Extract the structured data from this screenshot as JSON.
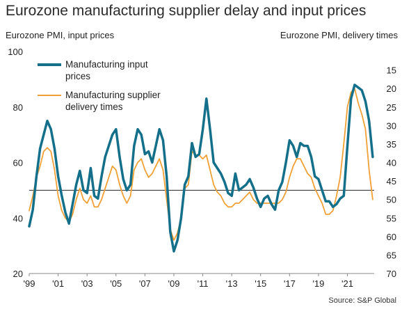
{
  "chart_data": {
    "type": "line",
    "title": "Eurozone manufacturing supplier delay and input prices",
    "left_axis_label": "Eurozone PMI, input prices",
    "right_axis_label": "Eurozone PMI, delivery times",
    "source": "Source: S&P Global",
    "x_ticks": [
      "'99",
      "'01",
      "'03",
      "'05",
      "'07",
      "'09",
      "'11",
      "'13",
      "'15",
      "'17",
      "'19",
      "'21"
    ],
    "left_ylim": [
      20,
      100
    ],
    "left_ticks": [
      "100",
      "80",
      "60",
      "40",
      "20"
    ],
    "right_ylim": [
      70,
      10
    ],
    "right_inverted": true,
    "right_ticks": [
      "15",
      "20",
      "25",
      "30",
      "35",
      "40",
      "45",
      "50",
      "55",
      "60",
      "65",
      "70"
    ],
    "reference_line_left_value": 50,
    "legend_position": "top-left",
    "series": [
      {
        "name": "Manufacturing input prices",
        "axis": "left",
        "color": "#136f8a",
        "x": [
          1999.0,
          1999.25,
          1999.5,
          1999.75,
          2000.0,
          2000.25,
          2000.5,
          2000.75,
          2001.0,
          2001.25,
          2001.5,
          2001.75,
          2002.0,
          2002.25,
          2002.5,
          2002.75,
          2003.0,
          2003.25,
          2003.5,
          2003.75,
          2004.0,
          2004.25,
          2004.5,
          2004.75,
          2005.0,
          2005.25,
          2005.5,
          2005.75,
          2006.0,
          2006.25,
          2006.5,
          2006.75,
          2007.0,
          2007.25,
          2007.5,
          2007.75,
          2008.0,
          2008.25,
          2008.5,
          2008.75,
          2009.0,
          2009.25,
          2009.5,
          2009.75,
          2010.0,
          2010.25,
          2010.5,
          2010.75,
          2011.0,
          2011.25,
          2011.5,
          2011.75,
          2012.0,
          2012.25,
          2012.5,
          2012.75,
          2013.0,
          2013.25,
          2013.5,
          2013.75,
          2014.0,
          2014.25,
          2014.5,
          2014.75,
          2015.0,
          2015.25,
          2015.5,
          2015.75,
          2016.0,
          2016.25,
          2016.5,
          2016.75,
          2017.0,
          2017.25,
          2017.5,
          2017.75,
          2018.0,
          2018.25,
          2018.5,
          2018.75,
          2019.0,
          2019.25,
          2019.5,
          2019.75,
          2020.0,
          2020.25,
          2020.5,
          2020.75,
          2021.0,
          2021.25,
          2021.5,
          2021.75,
          2022.0,
          2022.25,
          2022.5,
          2022.75
        ],
        "values": [
          37,
          43,
          55,
          65,
          70,
          75,
          72,
          65,
          55,
          48,
          42,
          38,
          45,
          52,
          57,
          50,
          49,
          58,
          48,
          47,
          55,
          62,
          66,
          70,
          72,
          62,
          54,
          50,
          52,
          66,
          72,
          70,
          63,
          64,
          60,
          66,
          72,
          68,
          55,
          35,
          28,
          32,
          40,
          52,
          55,
          67,
          62,
          63,
          72,
          83,
          72,
          60,
          58,
          56,
          53,
          49,
          48,
          56,
          50,
          51,
          52,
          54,
          51,
          47,
          44,
          47,
          48,
          45,
          43,
          50,
          53,
          60,
          68,
          66,
          62,
          67,
          66,
          66,
          62,
          55,
          54,
          50,
          46,
          46,
          44,
          45,
          47,
          48,
          66,
          83,
          88,
          87,
          86,
          82,
          75,
          62
        ]
      },
      {
        "name": "Manufacturing supplier delivery times",
        "axis": "right",
        "color": "#f0a035",
        "x": [
          1999.0,
          1999.25,
          1999.5,
          1999.75,
          2000.0,
          2000.25,
          2000.5,
          2000.75,
          2001.0,
          2001.25,
          2001.5,
          2001.75,
          2002.0,
          2002.25,
          2002.5,
          2002.75,
          2003.0,
          2003.25,
          2003.5,
          2003.75,
          2004.0,
          2004.25,
          2004.5,
          2004.75,
          2005.0,
          2005.25,
          2005.5,
          2005.75,
          2006.0,
          2006.25,
          2006.5,
          2006.75,
          2007.0,
          2007.25,
          2007.5,
          2007.75,
          2008.0,
          2008.25,
          2008.5,
          2008.75,
          2009.0,
          2009.25,
          2009.5,
          2009.75,
          2010.0,
          2010.25,
          2010.5,
          2010.75,
          2011.0,
          2011.25,
          2011.5,
          2011.75,
          2012.0,
          2012.25,
          2012.5,
          2012.75,
          2013.0,
          2013.25,
          2013.5,
          2013.75,
          2014.0,
          2014.25,
          2014.5,
          2014.75,
          2015.0,
          2015.25,
          2015.5,
          2015.75,
          2016.0,
          2016.25,
          2016.5,
          2016.75,
          2017.0,
          2017.25,
          2017.5,
          2017.75,
          2018.0,
          2018.25,
          2018.5,
          2018.75,
          2019.0,
          2019.25,
          2019.5,
          2019.75,
          2020.0,
          2020.25,
          2020.5,
          2020.75,
          2021.0,
          2021.25,
          2021.5,
          2021.75,
          2022.0,
          2022.25,
          2022.5,
          2022.75
        ],
        "values": [
          53,
          49,
          44,
          41,
          37,
          36,
          37,
          42,
          49,
          53,
          55,
          56,
          54,
          50,
          47,
          50,
          51,
          49,
          52,
          52,
          50,
          47,
          44,
          41,
          42,
          46,
          49,
          51,
          49,
          42,
          40,
          39,
          42,
          44,
          43,
          41,
          39,
          42,
          50,
          58,
          61,
          59,
          55,
          47,
          46,
          37,
          38,
          38,
          39,
          38,
          42,
          46,
          48,
          49,
          51,
          52,
          52,
          51,
          51,
          50,
          49,
          48,
          50,
          51,
          51,
          51,
          51,
          51,
          51,
          51,
          50,
          48,
          44,
          41,
          39,
          39,
          41,
          43,
          44,
          47,
          49,
          51,
          54,
          54,
          53,
          49,
          44,
          35,
          25,
          21,
          20,
          24,
          27,
          31,
          42,
          50
        ]
      }
    ]
  },
  "icons": {
    "legend_swatch": "line-swatch"
  }
}
